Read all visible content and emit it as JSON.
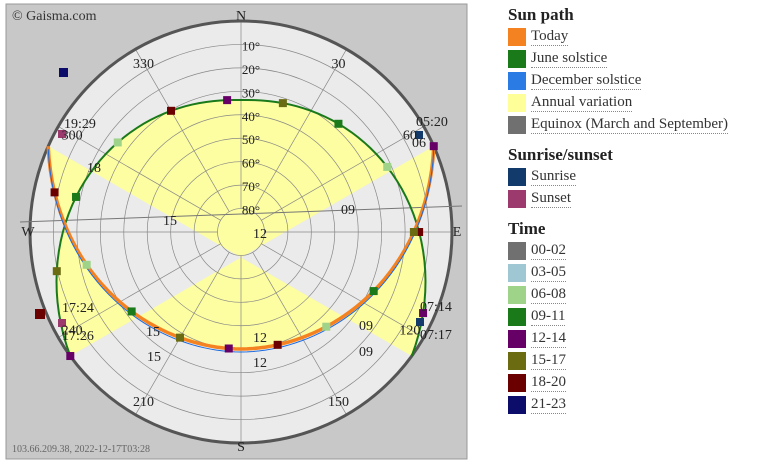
{
  "chart": {
    "credit": "© Gaisma.com",
    "footer": "103.66.209.38, 2022-12-17T03:28",
    "compass": {
      "n": "N",
      "s": "S",
      "e": "E",
      "w": "W"
    },
    "azimuth_labels": [
      {
        "az": 30,
        "text": "30"
      },
      {
        "az": 150,
        "text": "150"
      },
      {
        "az": 210,
        "text": "210"
      },
      {
        "az": 240,
        "text": "240"
      },
      {
        "az": 300,
        "text": "300"
      },
      {
        "az": 330,
        "text": "330"
      },
      {
        "az": 120,
        "text": "120"
      },
      {
        "az": 60,
        "text": "60"
      }
    ],
    "altitude_labels": [
      "10°",
      "20°",
      "30°",
      "40°",
      "50°",
      "60°",
      "70°",
      "80°"
    ],
    "hour_labels": [
      {
        "path": "june",
        "text": "19:29"
      },
      {
        "path": "june",
        "text": "18"
      },
      {
        "path": "june",
        "text": "15"
      },
      {
        "path": "june",
        "text": "12"
      },
      {
        "path": "june",
        "text": "09"
      },
      {
        "path": "june",
        "text": "06"
      },
      {
        "path": "june",
        "text": "05:20"
      },
      {
        "path": "december",
        "text": "17:24"
      },
      {
        "path": "december",
        "text": "15"
      },
      {
        "path": "december",
        "text": "12"
      },
      {
        "path": "december",
        "text": "09"
      },
      {
        "path": "december",
        "text": "07:14"
      },
      {
        "path": "today",
        "text": "17:26"
      },
      {
        "path": "today",
        "text": "15"
      },
      {
        "path": "today",
        "text": "12"
      },
      {
        "path": "today",
        "text": "09"
      },
      {
        "path": "today",
        "text": "07:17"
      }
    ],
    "colors": {
      "today": "#f58220",
      "june": "#1a7a1a",
      "december": "#1a6be0",
      "annual": "#ffff99",
      "equinox": "#666666",
      "plot_bg": "#c8c8c8",
      "disc": "#ebebeb",
      "grid": "#888888",
      "rim": "#555555"
    }
  },
  "legend": {
    "sun_path": {
      "title": "Sun path",
      "items": [
        {
          "label": "Today",
          "color": "#f58220"
        },
        {
          "label": "June solstice",
          "color": "#1a7a1a"
        },
        {
          "label": "December solstice",
          "color": "#2a7be4"
        },
        {
          "label": "Annual variation",
          "color": "#ffff99"
        },
        {
          "label": "Equinox (March and September)",
          "color": "#707070"
        }
      ]
    },
    "sunrise_sunset": {
      "title": "Sunrise/sunset",
      "items": [
        {
          "label": "Sunrise",
          "color": "#123a6b"
        },
        {
          "label": "Sunset",
          "color": "#9c3a6e"
        }
      ]
    },
    "time": {
      "title": "Time",
      "items": [
        {
          "label": "00-02",
          "color": "#707070"
        },
        {
          "label": "03-05",
          "color": "#9fc7d3"
        },
        {
          "label": "06-08",
          "color": "#9fd38a"
        },
        {
          "label": "09-11",
          "color": "#1a7a1a"
        },
        {
          "label": "12-14",
          "color": "#660066"
        },
        {
          "label": "15-17",
          "color": "#6b6b12"
        },
        {
          "label": "18-20",
          "color": "#6b0000"
        },
        {
          "label": "21-23",
          "color": "#0c0c6b"
        }
      ]
    }
  }
}
